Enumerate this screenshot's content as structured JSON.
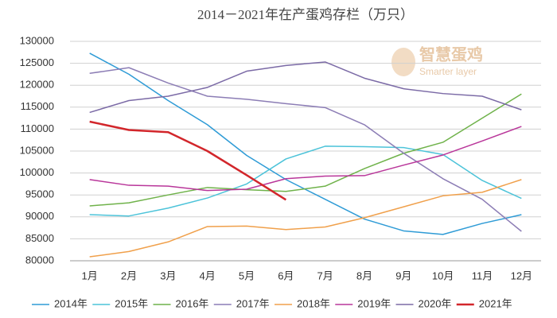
{
  "chart_data": {
    "type": "line",
    "title": "2014－2021年在产蛋鸡存栏（万只）",
    "watermark": {
      "name": "智慧蛋鸡",
      "subtitle": "Smarter layer"
    },
    "categories": [
      "1月",
      "2月",
      "3月",
      "4月",
      "5月",
      "6月",
      "7月",
      "8月",
      "9月",
      "10月",
      "11月",
      "12月"
    ],
    "series": [
      {
        "name": "2014年",
        "color": "#2e9bd6",
        "width": 1.5,
        "values": [
          127300,
          122500,
          116500,
          111000,
          104000,
          98500,
          94000,
          89500,
          86800,
          86000,
          88500,
          90500
        ]
      },
      {
        "name": "2015年",
        "color": "#4cc3d9",
        "width": 1.5,
        "values": [
          90500,
          90200,
          92000,
          94300,
          97500,
          103200,
          106100,
          106000,
          105800,
          104200,
          98300,
          94200
        ]
      },
      {
        "name": "2016年",
        "color": "#6fb24a",
        "width": 1.5,
        "values": [
          92500,
          93200,
          95000,
          96700,
          96200,
          95800,
          97000,
          101000,
          104500,
          107000,
          112500,
          118000
        ]
      },
      {
        "name": "2017年",
        "color": "#8c7db5",
        "width": 1.5,
        "values": [
          122700,
          124000,
          120500,
          117500,
          116800,
          115800,
          114900,
          111000,
          104500,
          98700,
          94000,
          86700
        ]
      },
      {
        "name": "2018年",
        "color": "#f0a04b",
        "width": 1.5,
        "values": [
          80900,
          82100,
          84300,
          87800,
          87900,
          87100,
          87700,
          89800,
          92300,
          94800,
          95600,
          98500
        ]
      },
      {
        "name": "2019年",
        "color": "#b9369a",
        "width": 1.5,
        "values": [
          98500,
          97200,
          97000,
          96000,
          96300,
          98700,
          99300,
          99400,
          101800,
          104100,
          107300,
          110600
        ]
      },
      {
        "name": "2020年",
        "color": "#7b6aa6",
        "width": 1.5,
        "values": [
          113800,
          116500,
          117500,
          119500,
          123200,
          124500,
          125300,
          121600,
          119200,
          118100,
          117500,
          114400
        ]
      },
      {
        "name": "2021年",
        "color": "#d2262b",
        "width": 2.5,
        "values": [
          111700,
          109800,
          109300,
          105000,
          99500,
          93900,
          null,
          null,
          null,
          null,
          null,
          null
        ]
      }
    ],
    "ylim": [
      80000,
      130000
    ],
    "yticks": [
      80000,
      85000,
      90000,
      95000,
      100000,
      105000,
      110000,
      115000,
      120000,
      125000,
      130000
    ],
    "grid": true,
    "legend": "bottom"
  }
}
